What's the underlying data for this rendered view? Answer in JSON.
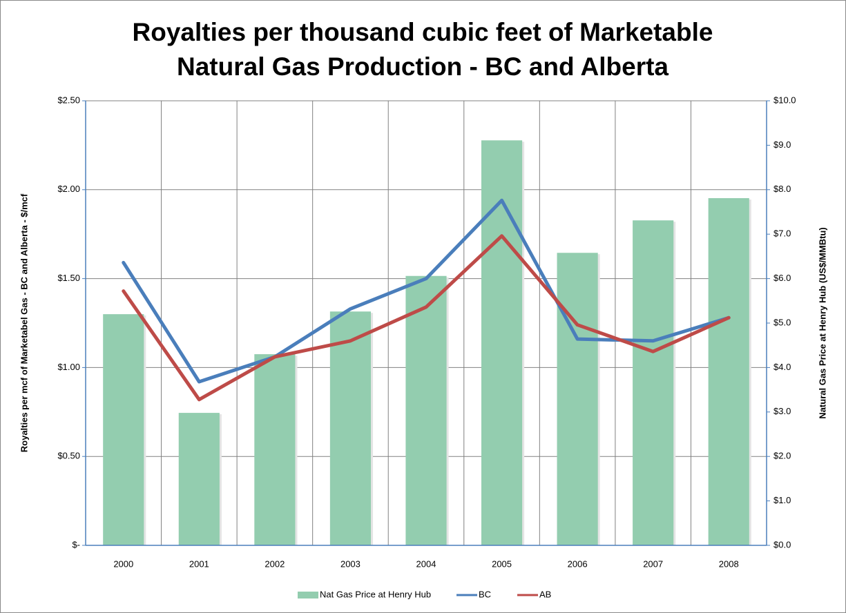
{
  "chart_data": {
    "type": "bar-line",
    "title": "Royalties per thousand cubic feet of Marketable Natural Gas Production - BC and Alberta",
    "y_label": "Royalties per mcf of Marketabel Gas - BC and Alberta - $/mcf",
    "y2_label": "Natural Gas Price at Henry Hub (US$/MMBtu)",
    "categories": [
      "2000",
      "2001",
      "2002",
      "2003",
      "2004",
      "2005",
      "2006",
      "2007",
      "2008"
    ],
    "series": [
      {
        "name": "Nat Gas Price at Henry Hub",
        "type": "bar",
        "axis": "y2",
        "color": "#93cdaf",
        "values": [
          5.2,
          2.98,
          4.3,
          5.26,
          6.06,
          9.11,
          6.58,
          7.31,
          7.81
        ]
      },
      {
        "name": "BC",
        "type": "line",
        "color": "#4a7ebb",
        "values": [
          1.59,
          0.92,
          1.06,
          1.33,
          1.5,
          1.94,
          1.16,
          1.15,
          1.28
        ]
      },
      {
        "name": "AB",
        "type": "line",
        "color": "#be4b48",
        "values": [
          1.43,
          0.82,
          1.06,
          1.15,
          1.34,
          1.74,
          1.24,
          1.09,
          1.28
        ]
      }
    ],
    "ylim": [
      0,
      2.5
    ],
    "yticks": [
      {
        "value": 0,
        "label": "$-"
      },
      {
        "value": 0.5,
        "label": "$0.50"
      },
      {
        "value": 1,
        "label": "$1.00"
      },
      {
        "value": 1.5,
        "label": "$1.50"
      },
      {
        "value": 2,
        "label": "$2.00"
      },
      {
        "value": 2.5,
        "label": "$2.50"
      }
    ],
    "y2lim": [
      0,
      10
    ],
    "y2ticks": [
      {
        "value": 0,
        "label": "$0.0"
      },
      {
        "value": 1,
        "label": "$1.0"
      },
      {
        "value": 2,
        "label": "$2.0"
      },
      {
        "value": 3,
        "label": "$3.0"
      },
      {
        "value": 4,
        "label": "$4.0"
      },
      {
        "value": 5,
        "label": "$5.0"
      },
      {
        "value": 6,
        "label": "$6.0"
      },
      {
        "value": 7,
        "label": "$7.0"
      },
      {
        "value": 8,
        "label": "$8.0"
      },
      {
        "value": 9,
        "label": "$9.0"
      },
      {
        "value": 10,
        "label": "$10.0"
      }
    ],
    "grid": true,
    "legend": "bottom"
  }
}
